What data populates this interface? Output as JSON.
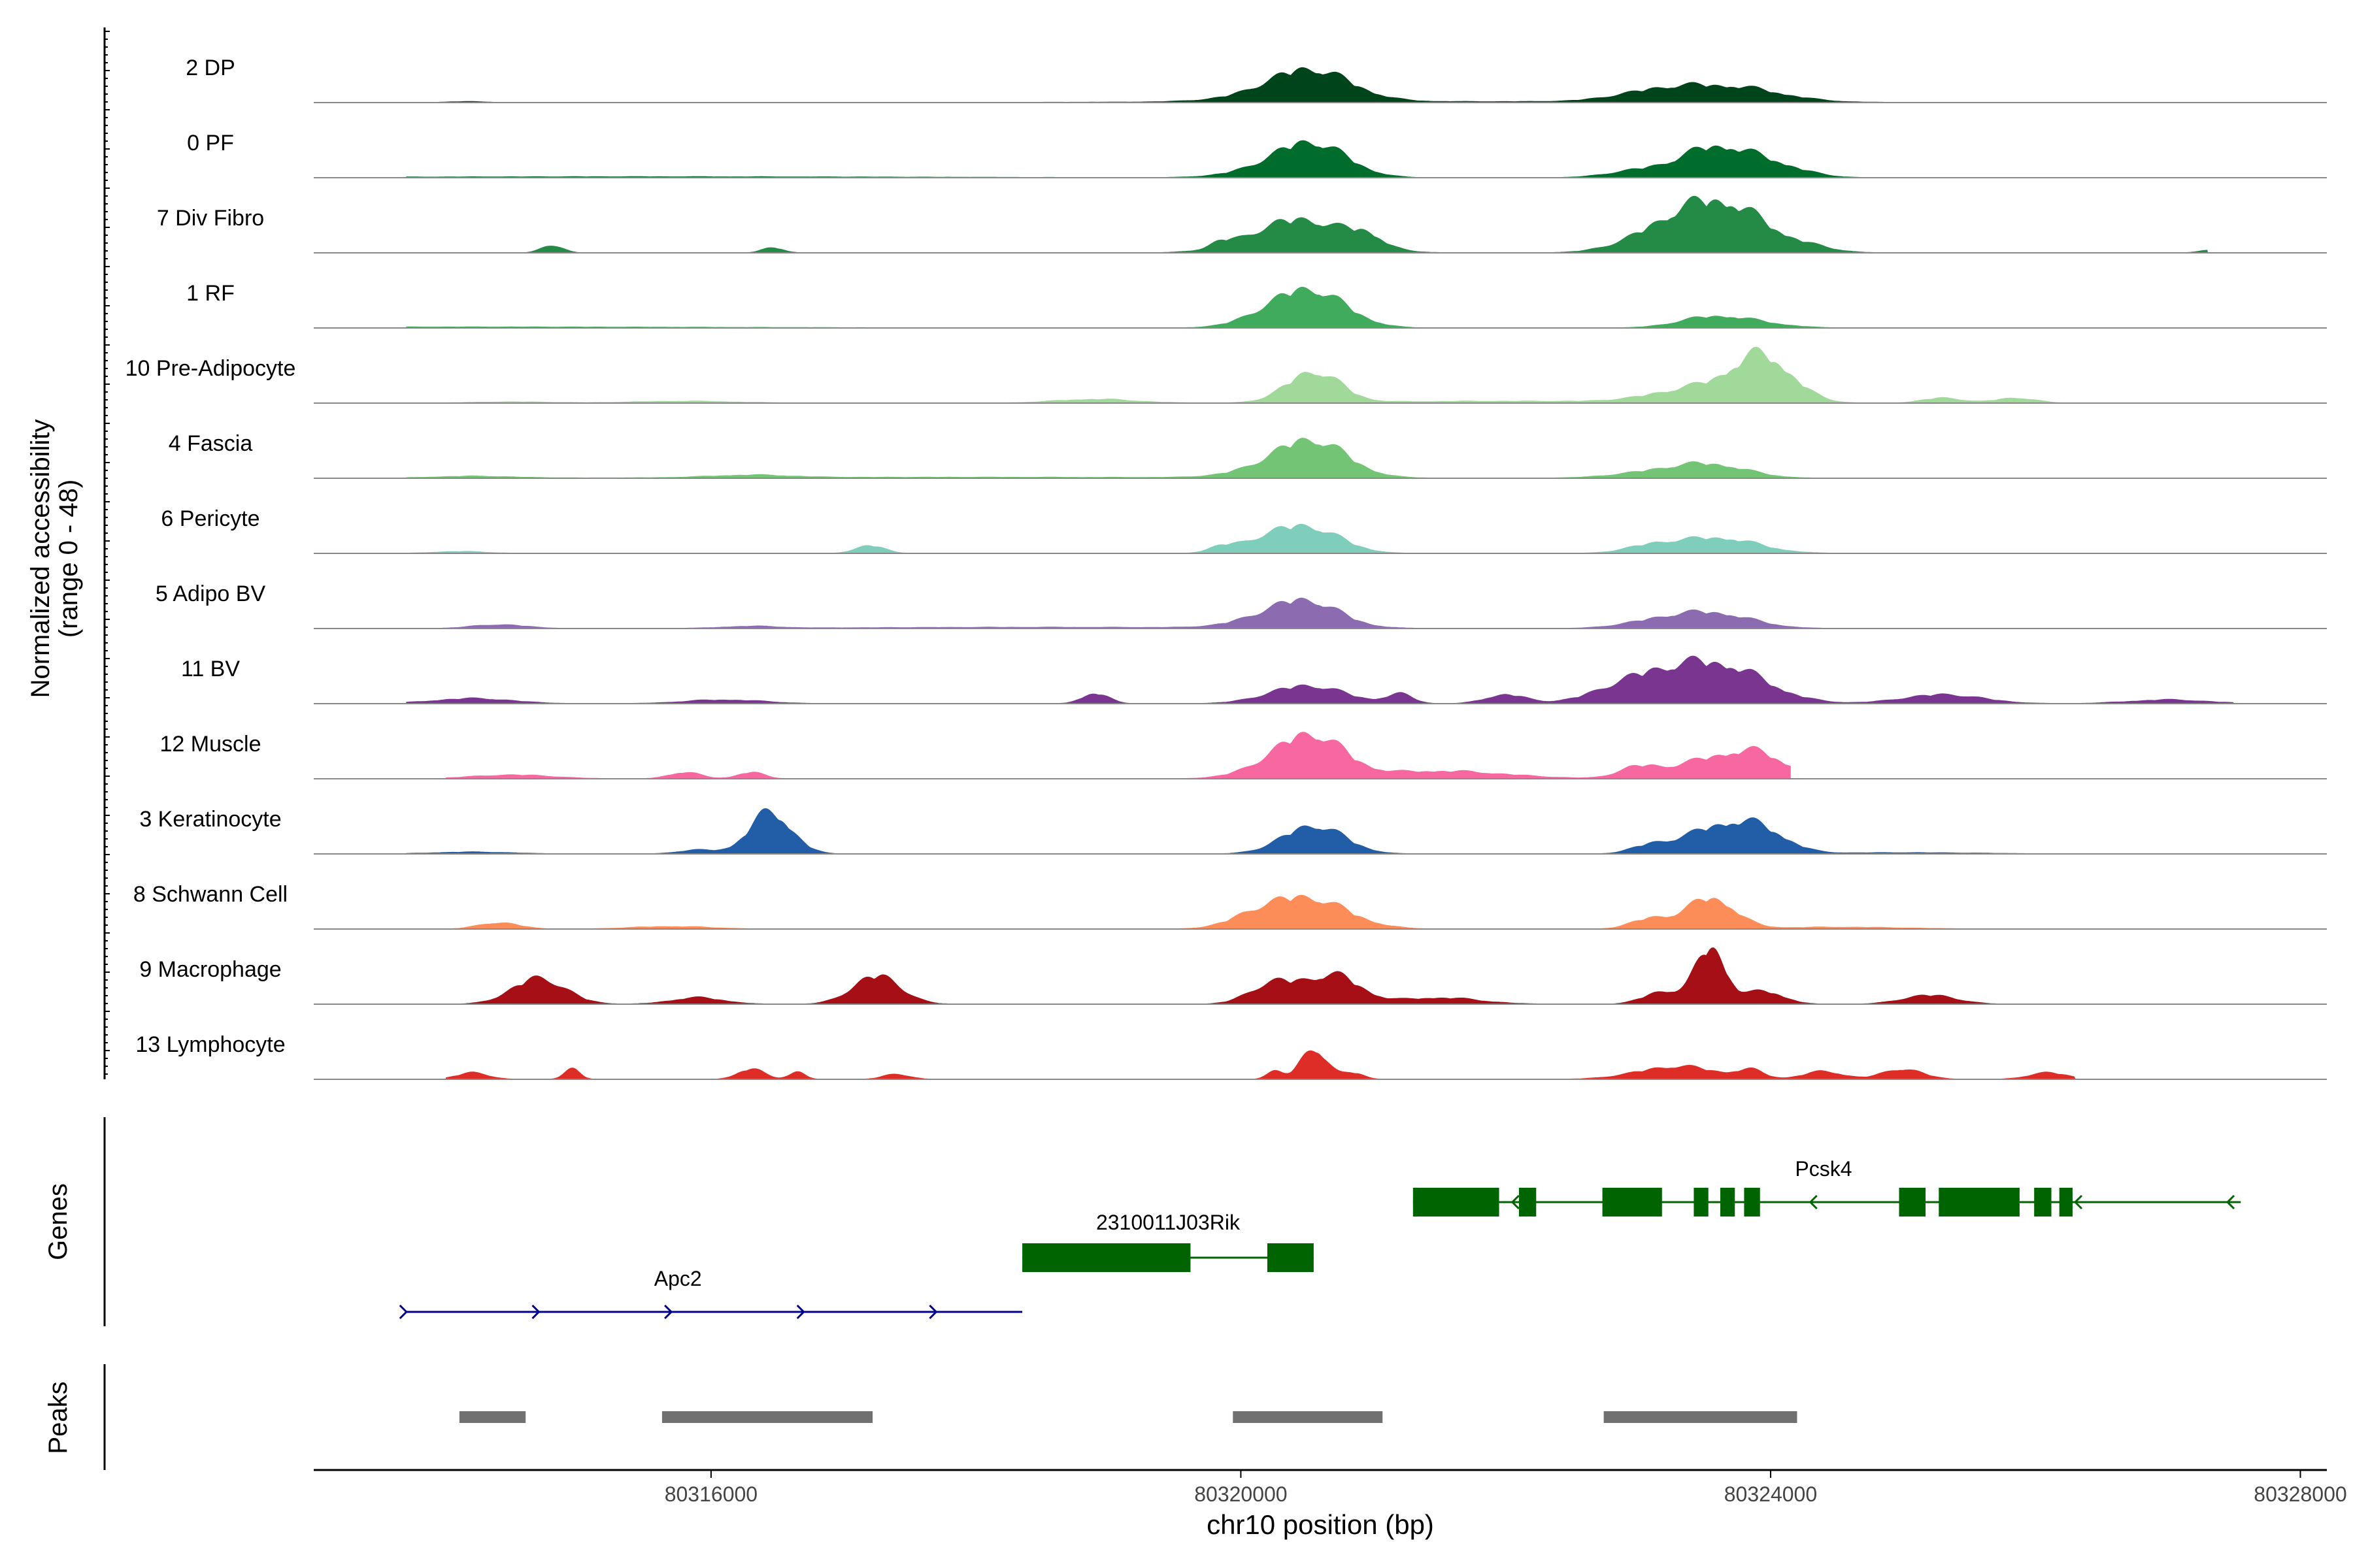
{
  "chart_data": {
    "type": "area",
    "title": "",
    "ylabel_line1": "Normalized accessibility",
    "ylabel_line2": "(range 0 - 48)",
    "y_range": [
      0,
      48
    ],
    "xlabel": "chr10 position (bp)",
    "xlim": [
      80313000,
      80328200
    ],
    "xticks": [
      80316000,
      80320000,
      80324000,
      80328000
    ],
    "xtick_labels": [
      "80316000",
      "80320000",
      "80324000",
      "80328000"
    ],
    "tracks": [
      {
        "name": "2 DP",
        "color": "#00441b",
        "peaks": [
          [
            80314150,
            0.8,
            150
          ],
          [
            80320530,
            22,
            300
          ],
          [
            80320300,
            4,
            400
          ],
          [
            80323500,
            10,
            400
          ],
          [
            80323100,
            4,
            300
          ],
          [
            80323900,
            4,
            300
          ],
          [
            80321500,
            0.8,
            2000
          ]
        ],
        "range": [
          80313700,
          80327500
        ]
      },
      {
        "name": "0 PF",
        "color": "#006d2c",
        "peaks": [
          [
            80320550,
            24,
            260
          ],
          [
            80320250,
            6,
            300
          ],
          [
            80323550,
            20,
            230
          ],
          [
            80323950,
            12,
            260
          ],
          [
            80323050,
            6,
            250
          ],
          [
            80315500,
            0.8,
            2000
          ]
        ],
        "range": [
          80313700,
          80327500
        ]
      },
      {
        "name": "7 Div Fibro",
        "color": "#238b45",
        "peaks": [
          [
            80314800,
            6,
            80
          ],
          [
            80316470,
            4,
            80
          ],
          [
            80319850,
            4,
            80
          ],
          [
            80320450,
            26,
            350
          ],
          [
            80320950,
            8,
            120
          ],
          [
            80323200,
            14,
            300
          ],
          [
            80323650,
            36,
            320
          ],
          [
            80324300,
            3,
            200
          ],
          [
            80327300,
            2,
            80
          ]
        ],
        "range": [
          80313800,
          80327300
        ]
      },
      {
        "name": "1 RF",
        "color": "#41ab5d",
        "peaks": [
          [
            80320550,
            26,
            260
          ],
          [
            80320250,
            8,
            250
          ],
          [
            80323550,
            8,
            250
          ],
          [
            80323900,
            3,
            250
          ],
          [
            80314200,
            0.8,
            2000
          ]
        ],
        "range": [
          80313700,
          80327500
        ]
      },
      {
        "name": "10 Pre-Adipocyte",
        "color": "#a1d99b",
        "peaks": [
          [
            80320550,
            24,
            200
          ],
          [
            80323950,
            32,
            220
          ],
          [
            80323500,
            12,
            350
          ],
          [
            80318900,
            3,
            300
          ],
          [
            80325300,
            4,
            150
          ],
          [
            80325850,
            4,
            150
          ],
          [
            80315800,
            1.5,
            400
          ],
          [
            80314500,
            1,
            300
          ],
          [
            80322000,
            1.5,
            1000
          ]
        ],
        "range": [
          80313700,
          80327500
        ]
      },
      {
        "name": "4 Fascia",
        "color": "#74c476",
        "peaks": [
          [
            80320550,
            26,
            260
          ],
          [
            80320250,
            6,
            300
          ],
          [
            80323550,
            10,
            280
          ],
          [
            80323100,
            4,
            300
          ],
          [
            80316300,
            2,
            300
          ],
          [
            80314200,
            1.5,
            300
          ],
          [
            80318000,
            0.8,
            2000
          ]
        ],
        "range": [
          80313700,
          80327500
        ]
      },
      {
        "name": "6 Pericyte",
        "color": "#7fcdbb",
        "peaks": [
          [
            80320500,
            20,
            250
          ],
          [
            80320150,
            6,
            200
          ],
          [
            80317200,
            6,
            110
          ],
          [
            80319850,
            4,
            100
          ],
          [
            80323600,
            12,
            300
          ],
          [
            80323100,
            5,
            200
          ],
          [
            80314100,
            1.5,
            200
          ]
        ],
        "range": [
          80313700,
          80327500
        ]
      },
      {
        "name": "5 Adipo BV",
        "color": "#8c6bb1",
        "peaks": [
          [
            80320500,
            20,
            250
          ],
          [
            80320150,
            5,
            250
          ],
          [
            80323550,
            12,
            300
          ],
          [
            80323100,
            4,
            250
          ],
          [
            80314400,
            3,
            200
          ],
          [
            80316300,
            1.5,
            200
          ],
          [
            80318500,
            1,
            1500
          ]
        ],
        "range": [
          80313700,
          80327500
        ]
      },
      {
        "name": "11 BV",
        "color": "#7a3590",
        "peaks": [
          [
            80320500,
            14,
            280
          ],
          [
            80323600,
            30,
            350
          ],
          [
            80323000,
            16,
            300
          ],
          [
            80318900,
            8,
            100
          ],
          [
            80314200,
            4,
            300
          ],
          [
            80316100,
            3,
            300
          ],
          [
            80325300,
            7,
            300
          ],
          [
            80327000,
            3,
            300
          ],
          [
            80321200,
            7,
            100
          ],
          [
            80322000,
            7,
            150
          ]
        ],
        "range": [
          80313700,
          80327500
        ]
      },
      {
        "name": "12 Muscle",
        "color": "#f768a1",
        "peaks": [
          [
            80320550,
            30,
            240
          ],
          [
            80320250,
            8,
            250
          ],
          [
            80323600,
            16,
            300
          ],
          [
            80323950,
            12,
            200
          ],
          [
            80323000,
            8,
            150
          ],
          [
            80315800,
            5,
            120
          ],
          [
            80316300,
            5,
            100
          ],
          [
            80314500,
            3,
            300
          ],
          [
            80321500,
            6,
            500
          ]
        ],
        "range": [
          80314000,
          80324150
        ]
      },
      {
        "name": "3 Keratinocyte",
        "color": "#225ea8",
        "peaks": [
          [
            80316450,
            32,
            160
          ],
          [
            80320550,
            22,
            230
          ],
          [
            80323600,
            20,
            250
          ],
          [
            80323950,
            14,
            200
          ],
          [
            80323100,
            6,
            150
          ],
          [
            80315900,
            3,
            150
          ],
          [
            80314200,
            1.5,
            300
          ],
          [
            80325000,
            1,
            600
          ]
        ],
        "range": [
          80313700,
          80327500
        ]
      },
      {
        "name": "8 Schwann Cell",
        "color": "#fc8d59",
        "peaks": [
          [
            80320500,
            24,
            300
          ],
          [
            80320100,
            6,
            200
          ],
          [
            80323550,
            24,
            180
          ],
          [
            80323100,
            8,
            150
          ],
          [
            80314400,
            5,
            150
          ],
          [
            80315700,
            2,
            300
          ],
          [
            80324500,
            1.5,
            500
          ]
        ],
        "range": [
          80313700,
          80327500
        ]
      },
      {
        "name": "9 Macrophage",
        "color": "#a50f15",
        "peaks": [
          [
            80314700,
            20,
            200
          ],
          [
            80317250,
            22,
            180
          ],
          [
            80323550,
            44,
            110
          ],
          [
            80320250,
            16,
            180
          ],
          [
            80320700,
            22,
            200
          ],
          [
            80323200,
            10,
            150
          ],
          [
            80323950,
            10,
            150
          ],
          [
            80315900,
            5,
            200
          ],
          [
            80325200,
            7,
            200
          ],
          [
            80321500,
            5,
            300
          ]
        ],
        "range": [
          80313700,
          80327300
        ]
      },
      {
        "name": "13 Lymphocyte",
        "color": "#de2d26",
        "peaks": [
          [
            80320550,
            24,
            100
          ],
          [
            80320250,
            6,
            60
          ],
          [
            80320850,
            5,
            80
          ],
          [
            80314950,
            8,
            60
          ],
          [
            80316300,
            8,
            100
          ],
          [
            80316650,
            6,
            60
          ],
          [
            80314200,
            5,
            120
          ],
          [
            80323300,
            10,
            300
          ],
          [
            80323850,
            6,
            100
          ],
          [
            80324400,
            6,
            150
          ],
          [
            80325000,
            8,
            150
          ],
          [
            80317400,
            4,
            100
          ],
          [
            80326100,
            5,
            150
          ]
        ],
        "range": [
          80314000,
          80326300
        ]
      }
    ],
    "genes_label": "Genes",
    "genes": [
      {
        "name": "Pcsk4",
        "strand": "-",
        "color": "#006400",
        "start": 80321300,
        "end": 80327550,
        "exons": [
          [
            80321300,
            80321950
          ],
          [
            80322100,
            80322230
          ],
          [
            80322730,
            80323180
          ],
          [
            80323420,
            80323530
          ],
          [
            80323620,
            80323730
          ],
          [
            80323800,
            80323920
          ],
          [
            80324970,
            80325170
          ],
          [
            80325270,
            80325880
          ],
          [
            80325990,
            80326120
          ],
          [
            80326180,
            80326280
          ]
        ]
      },
      {
        "name": "2310011J03Rik",
        "strand": "",
        "color": "#006400",
        "start": 80318350,
        "end": 80320550,
        "exons": [
          [
            80318350,
            80319620
          ],
          [
            80320200,
            80320550
          ]
        ]
      },
      {
        "name": "Apc2",
        "strand": "+",
        "color": "#00008b",
        "start": 80313700,
        "end": 80318350,
        "exons": []
      }
    ],
    "peaks_label": "Peaks",
    "peak_regions": [
      [
        80314100,
        80314600
      ],
      [
        80315630,
        80317220
      ],
      [
        80319940,
        80321070
      ],
      [
        80322740,
        80324200
      ]
    ]
  }
}
